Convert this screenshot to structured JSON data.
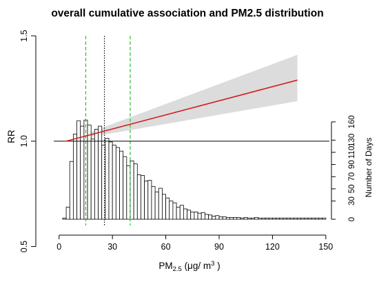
{
  "chart_data": {
    "type": "line+histogram",
    "title": "overall cumulative association and PM2.5 distribution",
    "xlabel_main": "PM",
    "xlabel_sub": "2.5",
    "xlabel_unit": " (μg/ m",
    "xlabel_sup": "3",
    "xlabel_close": " )",
    "ylabel_left": "RR",
    "ylabel_right": "Number of Days",
    "xlim": [
      -3,
      152
    ],
    "ylim_left": [
      0.6,
      1.5
    ],
    "ylim_right": [
      0,
      170
    ],
    "x_ticks": [
      0,
      30,
      60,
      90,
      120,
      150
    ],
    "x_tick_labels": [
      "0",
      "30",
      "60",
      "90",
      "120",
      "150"
    ],
    "y_left_ticks": [
      0.5,
      1.0,
      1.5
    ],
    "y_left_tick_labels": [
      "0.5",
      "1.0",
      "1.5"
    ],
    "y_right_ticks": [
      0,
      30,
      50,
      70,
      90,
      110,
      130,
      160
    ],
    "y_right_tick_labels": [
      "0",
      "30",
      "50",
      "70",
      "90",
      "110",
      "130",
      "160"
    ],
    "reference_line_rr": 1.0,
    "exposure_response": {
      "x": [
        4,
        134
      ],
      "rr": [
        1.0,
        1.29
      ],
      "ci_lower": [
        1.0,
        1.19
      ],
      "ci_upper": [
        1.0,
        1.41
      ],
      "line_color": "#d41c1c",
      "band_color": "#dcdcdc"
    },
    "vlines": [
      {
        "x": 15,
        "style": "dashed",
        "color": "#2fbf2f"
      },
      {
        "x": 25.5,
        "style": "dotted",
        "color": "#000000"
      },
      {
        "x": 40,
        "style": "dashed",
        "color": "#2fbf2f"
      }
    ],
    "histogram": {
      "bin_width": 2,
      "bin_start": 2,
      "counts": [
        2,
        20,
        95,
        140,
        162,
        153,
        163,
        155,
        132,
        148,
        153,
        122,
        133,
        127,
        122,
        118,
        112,
        103,
        88,
        96,
        91,
        73,
        72,
        63,
        64,
        54,
        45,
        51,
        41,
        35,
        30,
        27,
        20,
        23,
        17,
        15,
        12,
        12,
        10,
        11,
        8,
        7,
        5,
        6,
        4,
        4,
        3,
        3,
        3,
        3,
        2,
        3,
        2,
        2,
        3,
        2,
        2,
        2,
        2,
        2,
        2,
        2,
        2,
        2,
        2,
        2,
        2,
        2,
        2,
        2,
        2,
        2,
        2,
        2
      ]
    }
  }
}
